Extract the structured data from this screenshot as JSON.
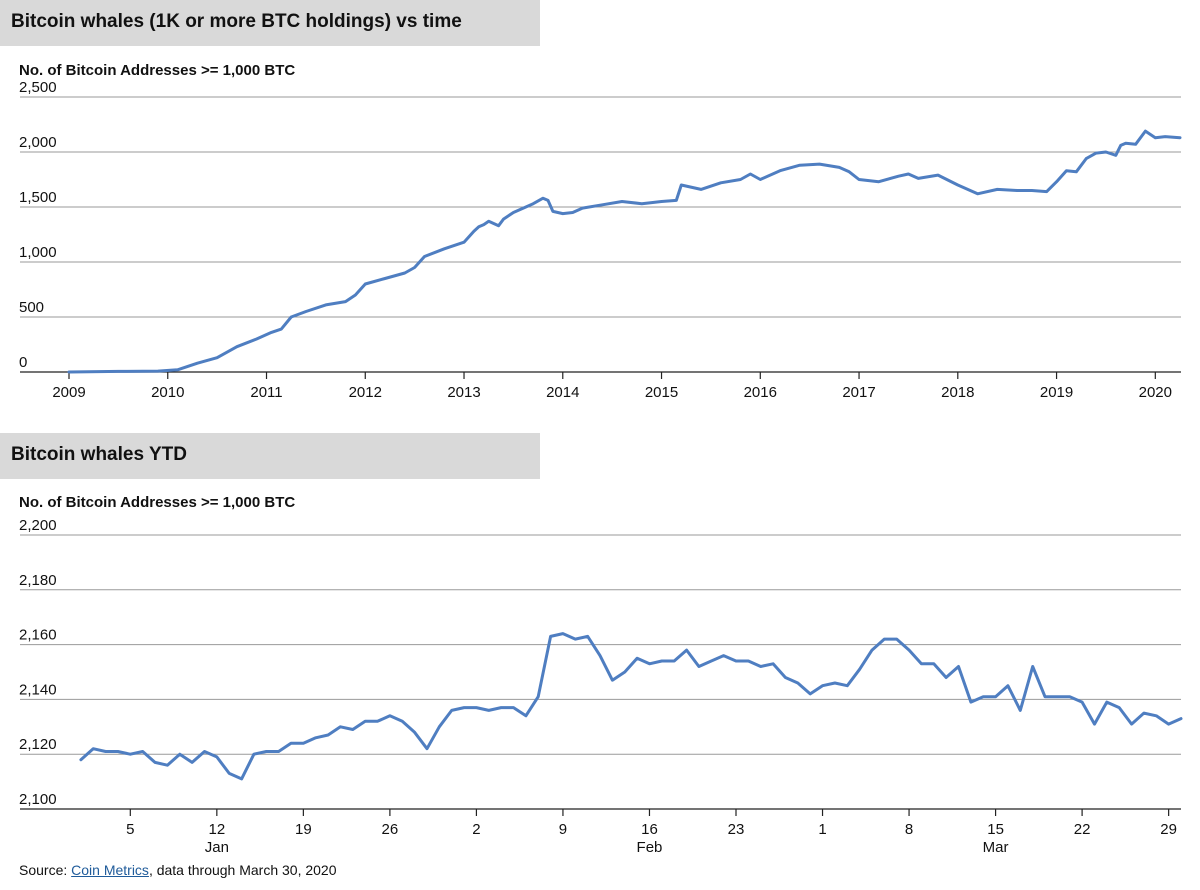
{
  "source": {
    "prefix": "Source: ",
    "link_text": "Coin Metrics",
    "suffix": ", data through March 30, 2020"
  },
  "colors": {
    "line": "#4f7ec1",
    "banner": "#d9d9d9"
  },
  "chart_data": [
    {
      "type": "line",
      "title": "Bitcoin whales (1K or more BTC holdings) vs time",
      "ylabel": "No. of Bitcoin Addresses >= 1,000 BTC",
      "xlabel": "",
      "x_ticks": [
        "2009",
        "2010",
        "2011",
        "2012",
        "2013",
        "2014",
        "2015",
        "2016",
        "2017",
        "2018",
        "2019",
        "2020"
      ],
      "xlim": [
        2009.0,
        2020.25
      ],
      "ylim": [
        0,
        2500
      ],
      "y_ticks": [
        0,
        500,
        1000,
        1500,
        2000,
        2500
      ],
      "y_tick_labels": [
        "0",
        "500",
        "1,000",
        "1,500",
        "2,000",
        "2,500"
      ],
      "grid": true,
      "series": [
        {
          "x": [
            2009.0,
            2009.5,
            2009.9,
            2010.1,
            2010.3,
            2010.5,
            2010.7,
            2010.9,
            2011.05,
            2011.15,
            2011.25,
            2011.4,
            2011.6,
            2011.8,
            2011.9,
            2012.0,
            2012.2,
            2012.4,
            2012.5,
            2012.6,
            2012.8,
            2013.0,
            2013.1,
            2013.15,
            2013.2,
            2013.25,
            2013.35,
            2013.4,
            2013.5,
            2013.6,
            2013.7,
            2013.8,
            2013.85,
            2013.9,
            2014.0,
            2014.1,
            2014.2,
            2014.4,
            2014.6,
            2014.8,
            2014.9,
            2015.0,
            2015.15,
            2015.2,
            2015.4,
            2015.6,
            2015.8,
            2015.9,
            2016.0,
            2016.2,
            2016.4,
            2016.6,
            2016.8,
            2016.9,
            2017.0,
            2017.2,
            2017.4,
            2017.5,
            2017.6,
            2017.8,
            2018.0,
            2018.2,
            2018.4,
            2018.6,
            2018.75,
            2018.9,
            2019.0,
            2019.1,
            2019.2,
            2019.3,
            2019.4,
            2019.5,
            2019.6,
            2019.65,
            2019.7,
            2019.8,
            2019.9,
            2020.0,
            2020.1,
            2020.25
          ],
          "y": [
            0,
            5,
            8,
            20,
            80,
            130,
            230,
            300,
            360,
            390,
            500,
            550,
            610,
            640,
            700,
            800,
            850,
            900,
            950,
            1050,
            1120,
            1180,
            1280,
            1320,
            1340,
            1370,
            1330,
            1390,
            1450,
            1490,
            1530,
            1580,
            1560,
            1460,
            1440,
            1450,
            1490,
            1520,
            1550,
            1530,
            1540,
            1550,
            1560,
            1700,
            1660,
            1720,
            1750,
            1800,
            1750,
            1830,
            1880,
            1890,
            1860,
            1820,
            1750,
            1730,
            1780,
            1800,
            1760,
            1790,
            1700,
            1620,
            1660,
            1650,
            1650,
            1640,
            1730,
            1830,
            1820,
            1940,
            1990,
            2000,
            1970,
            2060,
            2080,
            2070,
            2190,
            2130,
            2140,
            2130
          ]
        }
      ]
    },
    {
      "type": "line",
      "title": "Bitcoin whales YTD",
      "ylabel": "No. of Bitcoin Addresses >= 1,000 BTC",
      "xlabel": "",
      "x_ticks": [
        "5",
        "12",
        "19",
        "26",
        "2",
        "9",
        "16",
        "23",
        "1",
        "8",
        "15",
        "22",
        "29"
      ],
      "x_tick_days": [
        5,
        12,
        19,
        26,
        33,
        40,
        47,
        54,
        61,
        68,
        75,
        82,
        89
      ],
      "month_labels": [
        {
          "label": "Jan",
          "day": 12
        },
        {
          "label": "Feb",
          "day": 47
        },
        {
          "label": "Mar",
          "day": 75
        }
      ],
      "xlim": [
        0,
        90
      ],
      "ylim": [
        2100,
        2200
      ],
      "y_ticks": [
        2100,
        2120,
        2140,
        2160,
        2180,
        2200
      ],
      "y_tick_labels": [
        "2,100",
        "2,120",
        "2,140",
        "2,160",
        "2,180",
        "2,200"
      ],
      "grid": true,
      "series": [
        {
          "x": [
            1,
            2,
            3,
            4,
            5,
            6,
            7,
            8,
            9,
            10,
            11,
            12,
            13,
            14,
            15,
            16,
            17,
            18,
            19,
            20,
            21,
            22,
            23,
            24,
            25,
            26,
            27,
            28,
            29,
            30,
            31,
            32,
            33,
            34,
            35,
            36,
            37,
            38,
            39,
            40,
            41,
            42,
            43,
            44,
            45,
            46,
            47,
            48,
            49,
            50,
            51,
            52,
            53,
            54,
            55,
            56,
            57,
            58,
            59,
            60,
            61,
            62,
            63,
            64,
            65,
            66,
            67,
            68,
            69,
            70,
            71,
            72,
            73,
            74,
            75,
            76,
            77,
            78,
            79,
            80,
            81,
            82,
            83,
            84,
            85,
            86,
            87,
            88,
            89,
            90
          ],
          "y": [
            2118,
            2122,
            2121,
            2121,
            2120,
            2121,
            2117,
            2116,
            2120,
            2117,
            2121,
            2119,
            2113,
            2111,
            2120,
            2121,
            2121,
            2124,
            2124,
            2126,
            2127,
            2130,
            2129,
            2132,
            2132,
            2134,
            2132,
            2128,
            2122,
            2130,
            2136,
            2137,
            2137,
            2136,
            2137,
            2137,
            2134,
            2141,
            2163,
            2164,
            2162,
            2163,
            2156,
            2147,
            2150,
            2155,
            2153,
            2154,
            2154,
            2158,
            2152,
            2154,
            2156,
            2154,
            2154,
            2152,
            2153,
            2148,
            2146,
            2142,
            2145,
            2146,
            2145,
            2151,
            2158,
            2162,
            2162,
            2158,
            2153,
            2153,
            2148,
            2152,
            2139,
            2141,
            2141,
            2145,
            2136,
            2152,
            2141,
            2141,
            2141,
            2139,
            2131,
            2139,
            2137,
            2131,
            2135,
            2134,
            2131,
            2133
          ]
        }
      ]
    }
  ]
}
